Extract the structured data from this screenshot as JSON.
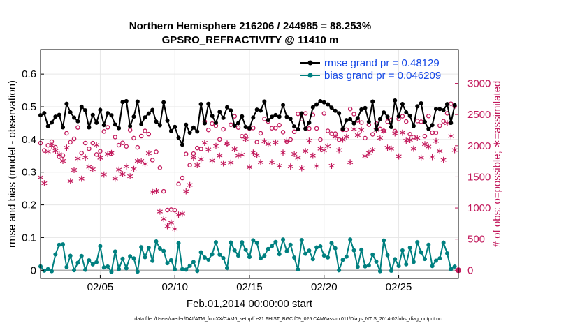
{
  "chart_data": {
    "type": "line",
    "title_line1": "Northern Hemisphere 216206 / 244985 = 88.253%",
    "title_line2": "GPSRO_REFRACTIVITY @ 11410 m",
    "xlabel": "Feb.01,2014 00:00:00 start",
    "ylabel_left": "rmse and bias (model - observation)",
    "ylabel_right": "# of obs: o=possible; ∗=assimilated",
    "footer": "data file: /Users/raeder/DAI/ATM_forcXX/CAM6_setup/f.e21.FHIST_BGC.f09_025.CAM6assim.011/Diags_NTrS_2014-02/obs_diag_output.nc",
    "x_unit": "days since Feb.01,2014",
    "xlim": [
      1,
      29
    ],
    "ylim_left": [
      -0.025,
      0.675
    ],
    "ylim_right": [
      -131,
      3544
    ],
    "x_ticks": [
      {
        "value": 5,
        "label": "02/05"
      },
      {
        "value": 10,
        "label": "02/10"
      },
      {
        "value": 15,
        "label": "02/15"
      },
      {
        "value": 20,
        "label": "02/20"
      },
      {
        "value": 25,
        "label": "02/25"
      }
    ],
    "y_left_ticks": [
      {
        "value": 0,
        "label": "0"
      },
      {
        "value": 0.1,
        "label": "0.1"
      },
      {
        "value": 0.2,
        "label": "0.2"
      },
      {
        "value": 0.3,
        "label": "0.3"
      },
      {
        "value": 0.4,
        "label": "0.4"
      },
      {
        "value": 0.5,
        "label": "0.5"
      },
      {
        "value": 0.6,
        "label": "0.6"
      }
    ],
    "y_right_ticks": [
      {
        "value": 0,
        "label": "0"
      },
      {
        "value": 500,
        "label": "500"
      },
      {
        "value": 1000,
        "label": "1000"
      },
      {
        "value": 1500,
        "label": "1500"
      },
      {
        "value": 2000,
        "label": "2000"
      },
      {
        "value": 2500,
        "label": "2500"
      },
      {
        "value": 3000,
        "label": "3000"
      }
    ],
    "legend": [
      {
        "label": "rmse grand pr = 0.48129",
        "color": "#000000",
        "marker": "circle"
      },
      {
        "label": "bias grand pr = 0.046209",
        "color": "#008080",
        "marker": "circle"
      }
    ],
    "colors": {
      "rmse": "#000000",
      "bias": "#008080",
      "obs": "#c2185b",
      "grid": "#e6e6e6",
      "zero": "#b0b0b0"
    },
    "grid": true,
    "series": [
      {
        "name": "rmse",
        "axis": "left",
        "generator": {
          "start": 1.0,
          "step": 0.25,
          "count": 112,
          "base": 0.475,
          "amp": 0.045,
          "dips": [
            [
              10.5,
              0.06,
              0.8
            ],
            [
              18.3,
              0.02,
              0.5
            ]
          ]
        }
      },
      {
        "name": "bias",
        "axis": "left",
        "generator": {
          "start": 1.0,
          "step": 0.25,
          "count": 112,
          "base": 0.045,
          "amp": 0.05
        }
      },
      {
        "name": "possible",
        "axis": "right",
        "marker": "o",
        "generator": {
          "start": 1.0,
          "step": 0.25,
          "count": 112,
          "base": 2050,
          "trend": 14,
          "amp": 260,
          "dip": [
            9.8,
            1050,
            1.2
          ]
        }
      },
      {
        "name": "assimilated",
        "axis": "right",
        "marker": "*",
        "generator": {
          "start": 1.0,
          "step": 0.25,
          "count": 112,
          "base": 1700,
          "trend": 14,
          "amp": 300,
          "dip": [
            9.8,
            950,
            1.2
          ]
        }
      }
    ]
  }
}
